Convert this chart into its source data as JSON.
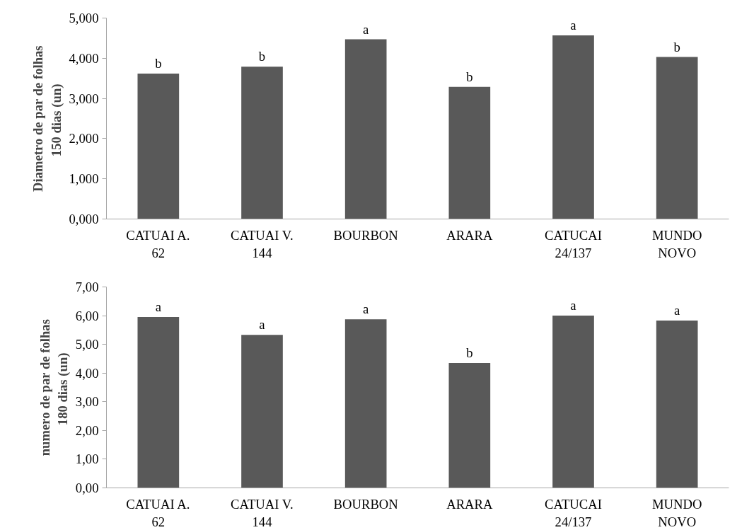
{
  "chart_data": [
    {
      "type": "bar",
      "ylabel": "Diametro de par de folhas\n150 dias  (un)",
      "categories": [
        "CATUAI A.\n62",
        "CATUAI V.\n144",
        "BOURBON",
        "ARARA",
        "CATUCAI\n24/137",
        "MUNDO\nNOVO"
      ],
      "values": [
        3.62,
        3.79,
        4.47,
        3.29,
        4.57,
        4.03
      ],
      "color": "#595959",
      "ylim": [
        0,
        5
      ],
      "yticks": [
        {
          "value": 0,
          "label": "0,000"
        },
        {
          "value": 1,
          "label": "1,000"
        },
        {
          "value": 2,
          "label": "2,000"
        },
        {
          "value": 3,
          "label": "3,000"
        },
        {
          "value": 4,
          "label": "4,000"
        },
        {
          "value": 5,
          "label": "5,000"
        }
      ],
      "annotations": [
        {
          "text": "b",
          "x": "CATUAI A.\n62",
          "y": 3.62
        },
        {
          "text": "b",
          "x": "CATUAI V.\n144",
          "y": 3.79
        },
        {
          "text": "a",
          "x": "BOURBON",
          "y": 4.47
        },
        {
          "text": "b",
          "x": "ARARA",
          "y": 3.29
        },
        {
          "text": "a",
          "x": "CATUCAI\n24/137",
          "y": 4.57
        },
        {
          "text": "b",
          "x": "MUNDO\nNOVO",
          "y": 4.03
        }
      ]
    },
    {
      "type": "bar",
      "ylabel": "numero de par de folhas\n180 dias  (un)",
      "categories": [
        "CATUAI A.\n62",
        "CATUAI V.\n144",
        "BOURBON",
        "ARARA",
        "CATUCAI\n24/137",
        "MUNDO\nNOVO"
      ],
      "values": [
        5.95,
        5.33,
        5.87,
        4.35,
        6.0,
        5.83
      ],
      "color": "#595959",
      "ylim": [
        0,
        7
      ],
      "yticks": [
        {
          "value": 0,
          "label": "0,00"
        },
        {
          "value": 1,
          "label": "1,00"
        },
        {
          "value": 2,
          "label": "2,00"
        },
        {
          "value": 3,
          "label": "3,00"
        },
        {
          "value": 4,
          "label": "4,00"
        },
        {
          "value": 5,
          "label": "5,00"
        },
        {
          "value": 6,
          "label": "6,00"
        },
        {
          "value": 7,
          "label": "7,00"
        }
      ],
      "annotations": [
        {
          "text": "a",
          "x": "CATUAI A.\n62",
          "y": 5.95
        },
        {
          "text": "a",
          "x": "CATUAI V.\n144",
          "y": 5.33
        },
        {
          "text": "a",
          "x": "BOURBON",
          "y": 5.87
        },
        {
          "text": "b",
          "x": "ARARA",
          "y": 4.35
        },
        {
          "text": "a",
          "x": "CATUCAI\n24/137",
          "y": 6.0
        },
        {
          "text": "a",
          "x": "MUNDO\nNOVO",
          "y": 5.83
        }
      ]
    }
  ]
}
